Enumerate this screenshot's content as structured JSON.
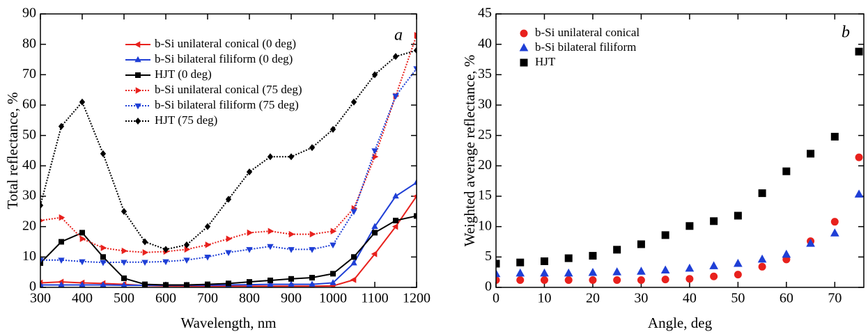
{
  "chart_data": [
    {
      "type": "line",
      "annotation": "a",
      "xlabel": "Wavelength, nm",
      "ylabel": "Total reflectance, %",
      "x": [
        300,
        350,
        400,
        450,
        500,
        550,
        600,
        650,
        700,
        750,
        800,
        850,
        900,
        950,
        1000,
        1050,
        1100,
        1150,
        1200
      ],
      "xlim": [
        300,
        1200
      ],
      "xticks": [
        300,
        400,
        500,
        600,
        700,
        800,
        900,
        1000,
        1100,
        1200
      ],
      "ylim": [
        0,
        90
      ],
      "yticks": [
        0,
        10,
        20,
        30,
        40,
        50,
        60,
        70,
        80,
        90
      ],
      "series": [
        {
          "name": "b-Si unilateral conical (0 deg)",
          "color": "#e8211d",
          "marker": "tri-left",
          "dash": "solid",
          "values": [
            1.5,
            1.8,
            1.5,
            1.3,
            1.0,
            0.6,
            0.5,
            0.4,
            0.4,
            0.4,
            0.4,
            0.4,
            0.4,
            0.4,
            0.5,
            2.5,
            11,
            20,
            30
          ]
        },
        {
          "name": "b-Si bilateral filiform (0 deg)",
          "color": "#1f3fd6",
          "marker": "tri-up",
          "dash": "solid",
          "values": [
            0.8,
            0.8,
            0.8,
            0.8,
            0.7,
            0.7,
            0.7,
            0.7,
            0.7,
            0.8,
            0.9,
            1.0,
            1.0,
            1.0,
            1.5,
            8,
            20,
            30,
            34.5
          ]
        },
        {
          "name": "HJT (0 deg)",
          "color": "#000000",
          "marker": "square",
          "dash": "solid",
          "values": [
            8,
            15,
            18,
            10,
            3,
            1,
            0.8,
            0.8,
            1,
            1.3,
            1.8,
            2.3,
            2.8,
            3.2,
            4.5,
            10,
            18,
            22,
            23.5
          ]
        },
        {
          "name": "b-Si unilateral conical (75 deg)",
          "color": "#e8211d",
          "marker": "tri-right",
          "dash": "dotted",
          "values": [
            22,
            23,
            16,
            13,
            12,
            11.5,
            11.8,
            12.5,
            14,
            16,
            18,
            18.5,
            17.5,
            17.5,
            18.5,
            26,
            43,
            63,
            83
          ]
        },
        {
          "name": "b-Si bilateral filiform (75 deg)",
          "color": "#1f3fd6",
          "marker": "tri-down",
          "dash": "dotted",
          "values": [
            9,
            9,
            8.5,
            8.2,
            8.3,
            8.3,
            8.5,
            9,
            10,
            11.5,
            12.5,
            13.5,
            12.5,
            12.5,
            14,
            25,
            45,
            63,
            72
          ]
        },
        {
          "name": "HJT (75 deg)",
          "color": "#000000",
          "marker": "diamond",
          "dash": "dotted",
          "values": [
            27,
            53,
            61,
            44,
            25,
            15,
            12.5,
            14,
            20,
            29,
            38,
            43,
            43,
            46,
            52,
            61,
            70,
            76,
            78
          ]
        }
      ]
    },
    {
      "type": "scatter",
      "annotation": "b",
      "xlabel": "Angle, deg",
      "ylabel": "Weighted average reflectance, %",
      "x": [
        0,
        5,
        10,
        15,
        20,
        25,
        30,
        35,
        40,
        45,
        50,
        55,
        60,
        65,
        70,
        75
      ],
      "xlim": [
        0,
        76
      ],
      "xticks": [
        0,
        10,
        20,
        30,
        40,
        50,
        60,
        70
      ],
      "ylim": [
        0,
        45
      ],
      "yticks": [
        0,
        5,
        10,
        15,
        20,
        25,
        30,
        35,
        40,
        45
      ],
      "series": [
        {
          "name": "b-Si unilateral conical",
          "color": "#e8211d",
          "marker": "circle",
          "values": [
            1.2,
            1.2,
            1.2,
            1.2,
            1.2,
            1.2,
            1.2,
            1.3,
            1.4,
            1.8,
            2.1,
            3.4,
            4.6,
            7.6,
            10.8,
            21.4
          ]
        },
        {
          "name": "b-Si bilateral filiform",
          "color": "#1f3fd6",
          "marker": "tri-up",
          "values": [
            2.2,
            2.3,
            2.3,
            2.3,
            2.4,
            2.5,
            2.6,
            2.8,
            3.1,
            3.5,
            3.9,
            4.6,
            5.4,
            7.2,
            8.9,
            15.3
          ]
        },
        {
          "name": "HJT",
          "color": "#000000",
          "marker": "square",
          "values": [
            3.9,
            4.1,
            4.3,
            4.8,
            5.2,
            6.2,
            7.1,
            8.6,
            10.1,
            10.9,
            11.8,
            15.5,
            19.1,
            22.0,
            24.8,
            38.8
          ]
        }
      ]
    }
  ]
}
